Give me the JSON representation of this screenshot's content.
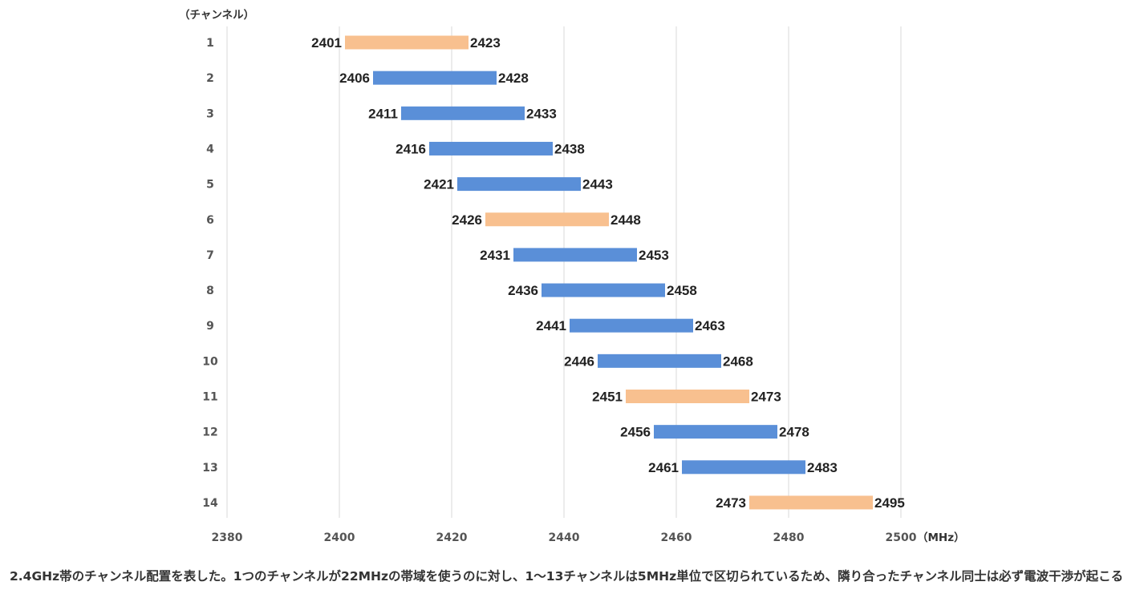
{
  "chart_data": {
    "type": "bar",
    "orientation": "horizontal-range",
    "y_unit_label": "（チャンネル）",
    "x_unit_label": "（MHz）",
    "xlim": [
      2380,
      2500
    ],
    "x_ticks": [
      "2380",
      "2400",
      "2420",
      "2440",
      "2460",
      "2480",
      "2500"
    ],
    "grid": true,
    "colors": {
      "highlight": "#F8C08F",
      "normal": "#5A8FD8",
      "grid": "#D9D9D9"
    },
    "categories": [
      "1",
      "2",
      "3",
      "4",
      "5",
      "6",
      "7",
      "8",
      "9",
      "10",
      "11",
      "12",
      "13",
      "14"
    ],
    "ranges": [
      {
        "channel": "1",
        "start": 2401,
        "end": 2423,
        "highlight": true
      },
      {
        "channel": "2",
        "start": 2406,
        "end": 2428,
        "highlight": false
      },
      {
        "channel": "3",
        "start": 2411,
        "end": 2433,
        "highlight": false
      },
      {
        "channel": "4",
        "start": 2416,
        "end": 2438,
        "highlight": false
      },
      {
        "channel": "5",
        "start": 2421,
        "end": 2443,
        "highlight": false
      },
      {
        "channel": "6",
        "start": 2426,
        "end": 2448,
        "highlight": true
      },
      {
        "channel": "7",
        "start": 2431,
        "end": 2453,
        "highlight": false
      },
      {
        "channel": "8",
        "start": 2436,
        "end": 2458,
        "highlight": false
      },
      {
        "channel": "9",
        "start": 2441,
        "end": 2463,
        "highlight": false
      },
      {
        "channel": "10",
        "start": 2446,
        "end": 2468,
        "highlight": false
      },
      {
        "channel": "11",
        "start": 2451,
        "end": 2473,
        "highlight": true
      },
      {
        "channel": "12",
        "start": 2456,
        "end": 2478,
        "highlight": false
      },
      {
        "channel": "13",
        "start": 2461,
        "end": 2483,
        "highlight": false
      },
      {
        "channel": "14",
        "start": 2473,
        "end": 2495,
        "highlight": true
      }
    ]
  },
  "caption": "2.4GHz帯のチャンネル配置を表した。1つのチャンネルが22MHzの帯域を使うのに対し、1〜13チャンネルは5MHz単位で区切られているため、隣り合ったチャンネル同士は必ず電波干渉が起こる"
}
